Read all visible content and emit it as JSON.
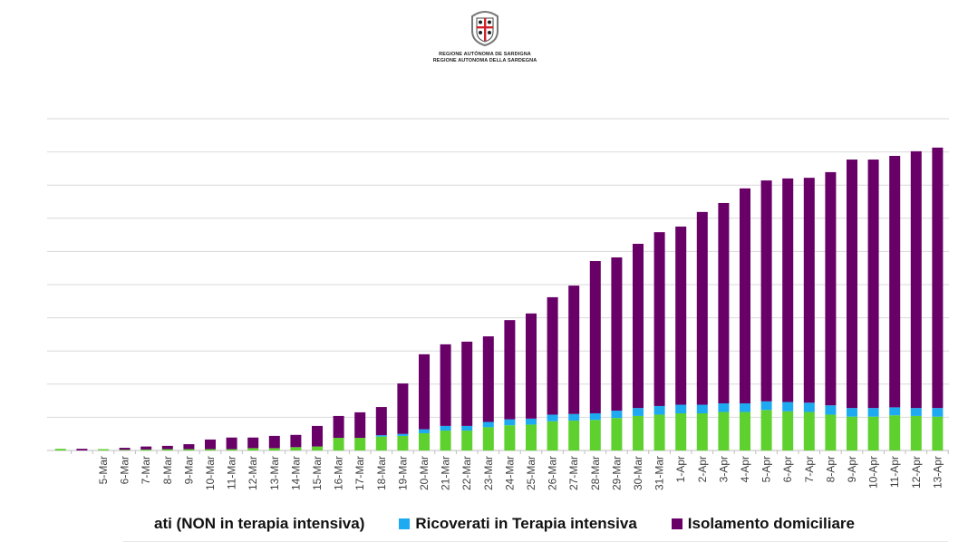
{
  "logo": {
    "lines": [
      "REGIONE AUTÒNOMA DE SARDIGNA",
      "REGIONE AUTONOMA DELLA SARDEGNA"
    ]
  },
  "chart_data": {
    "type": "bar",
    "stacked": true,
    "grid": true,
    "ylim": [
      0,
      1000
    ],
    "ytick_step": 100,
    "ytick_labels_visible": false,
    "legend_placement": "bottom",
    "categories": [
      "",
      "",
      "5-Mar",
      "6-Mar",
      "7-Mar",
      "8-Mar",
      "9-Mar",
      "10-Mar",
      "11-Mar",
      "12-Mar",
      "13-Mar",
      "14-Mar",
      "15-Mar",
      "16-Mar",
      "17-Mar",
      "18-Mar",
      "19-Mar",
      "20-Mar",
      "21-Mar",
      "22-Mar",
      "23-Mar",
      "24-Mar",
      "25-Mar",
      "26-Mar",
      "27-Mar",
      "28-Mar",
      "29-Mar",
      "30-Mar",
      "31-Mar",
      "1-Apr",
      "2-Apr",
      "3-Apr",
      "4-Apr",
      "5-Apr",
      "6-Apr",
      "7-Apr",
      "8-Apr",
      "9-Apr",
      "10-Apr",
      "11-Apr",
      "12-Apr",
      "13-Apr"
    ],
    "series": [
      {
        "name": "ati (NON in terapia intensiva)",
        "color": "#5fd12e",
        "values": [
          5,
          0,
          4,
          2,
          3,
          4,
          4,
          4,
          4,
          7,
          7,
          10,
          12,
          38,
          38,
          42,
          44,
          52,
          60,
          60,
          70,
          76,
          78,
          88,
          90,
          92,
          98,
          104,
          108,
          112,
          112,
          116,
          116,
          122,
          118,
          116,
          108,
          102,
          102,
          106,
          104,
          102
        ]
      },
      {
        "name": "Ricoverati in Terapia intensiva",
        "color": "#1eaaf1",
        "values": [
          0,
          0,
          0,
          0,
          0,
          0,
          0,
          0,
          0,
          0,
          0,
          0,
          0,
          0,
          0,
          4,
          6,
          12,
          14,
          14,
          16,
          18,
          18,
          20,
          20,
          20,
          22,
          24,
          26,
          26,
          26,
          26,
          26,
          26,
          28,
          28,
          28,
          26,
          26,
          24,
          24,
          26
        ]
      },
      {
        "name": "Isolamento domiciliare",
        "color": "#680068",
        "values": [
          0,
          5,
          0,
          6,
          9,
          10,
          15,
          29,
          35,
          32,
          37,
          37,
          62,
          66,
          77,
          85,
          152,
          226,
          246,
          254,
          258,
          299,
          317,
          354,
          387,
          459,
          462,
          495,
          524,
          537,
          581,
          604,
          648,
          666,
          674,
          678,
          703,
          749,
          749,
          758,
          774,
          785
        ]
      }
    ]
  }
}
